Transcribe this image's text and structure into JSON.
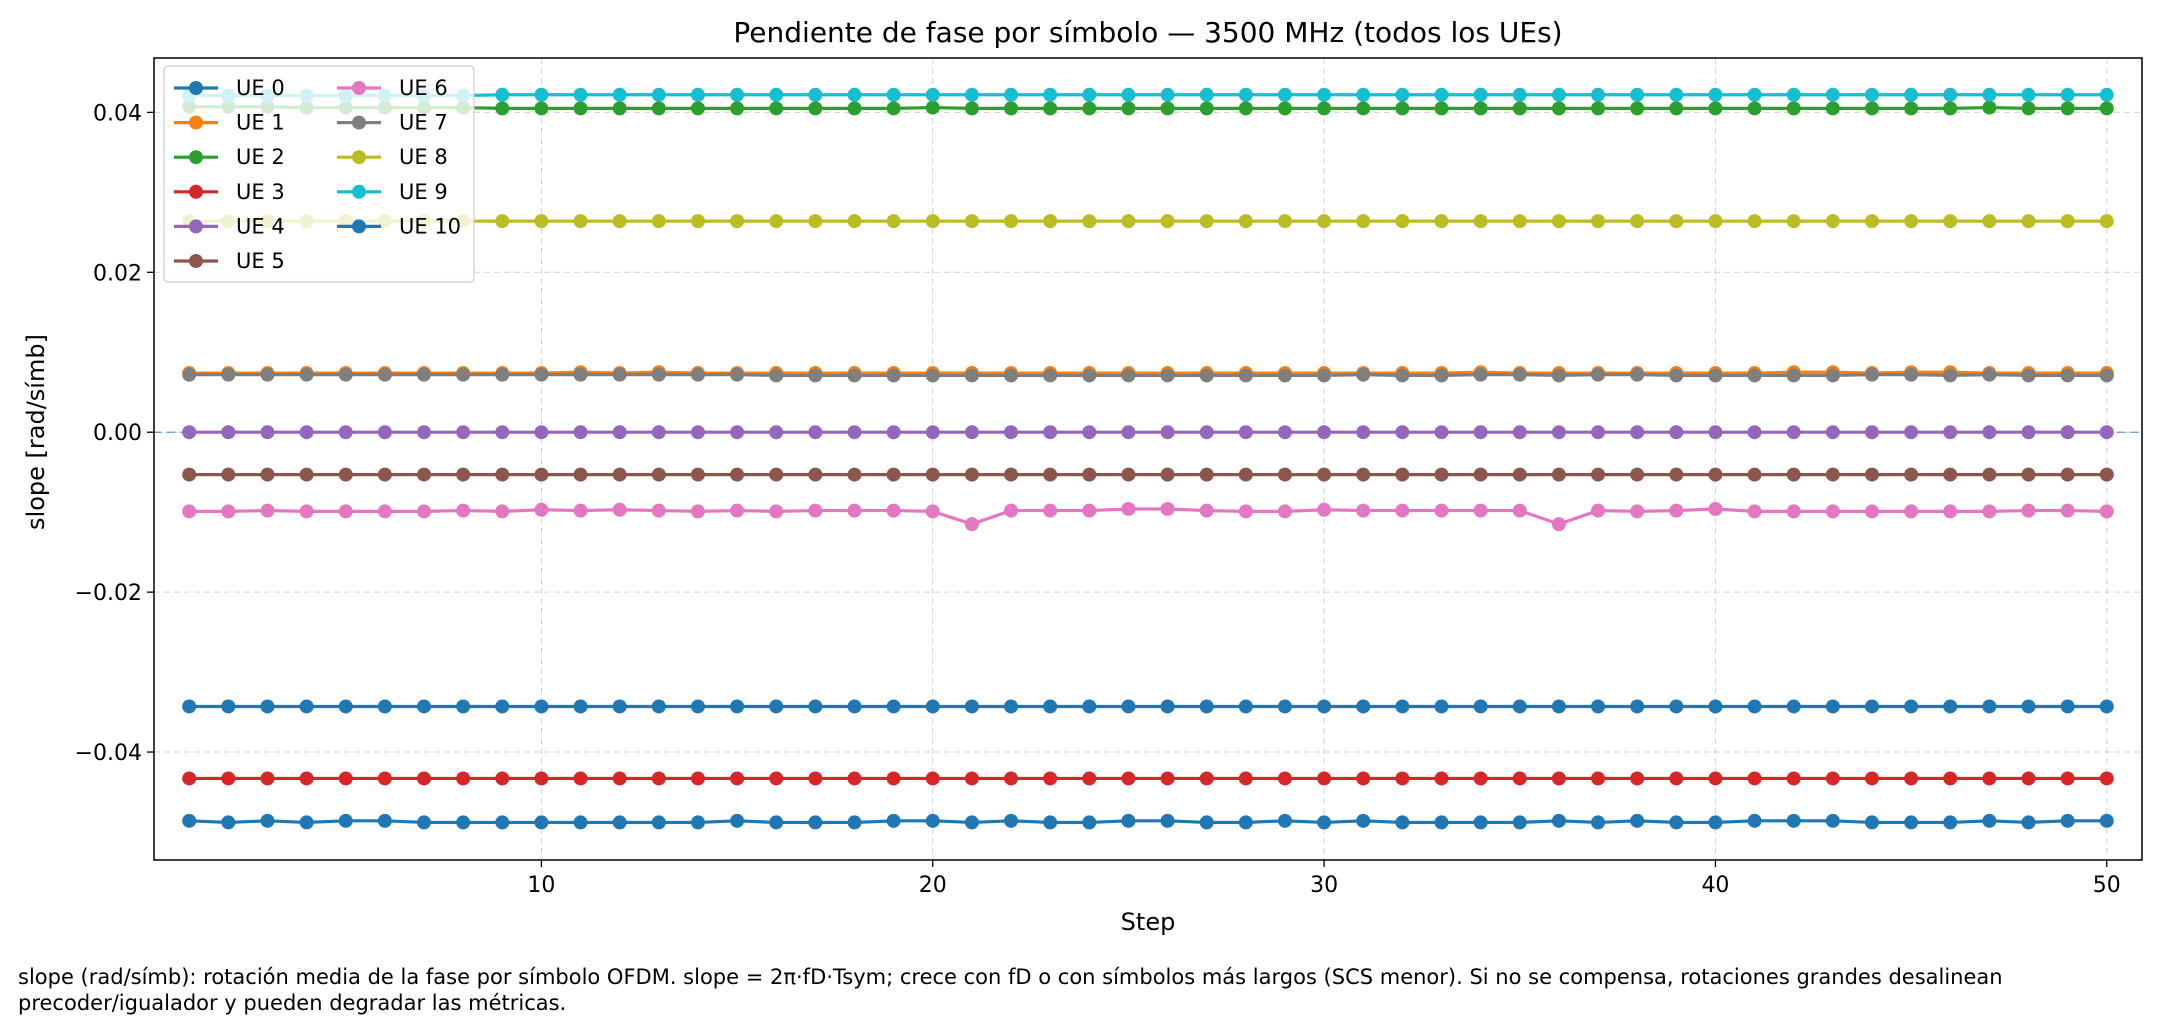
{
  "chart_data": {
    "type": "line",
    "title": "Pendiente de fase por símbolo — 3500 MHz (todos los UEs)",
    "xlabel": "Step",
    "ylabel": "slope [rad/símb]",
    "xlim": [
      0.1,
      50.9
    ],
    "ylim": [
      -0.0535,
      0.0468
    ],
    "xticks": [
      10,
      20,
      30,
      40,
      50
    ],
    "yticks": [
      -0.04,
      -0.02,
      0.0,
      0.02,
      0.04
    ],
    "ytick_labels": [
      "−0.04",
      "−0.02",
      "0.00",
      "0.02",
      "0.04"
    ],
    "grid": true,
    "legend_position": "upper left",
    "legend_columns": 2,
    "reference_line": {
      "y": 0.0,
      "style": "dashed",
      "color": "#1f77b4"
    },
    "x": [
      1,
      2,
      3,
      4,
      5,
      6,
      7,
      8,
      9,
      10,
      11,
      12,
      13,
      14,
      15,
      16,
      17,
      18,
      19,
      20,
      21,
      22,
      23,
      24,
      25,
      26,
      27,
      28,
      29,
      30,
      31,
      32,
      33,
      34,
      35,
      36,
      37,
      38,
      39,
      40,
      41,
      42,
      43,
      44,
      45,
      46,
      47,
      48,
      49,
      50
    ],
    "series": [
      {
        "name": "UE 0",
        "color": "#1f77b4",
        "values": [
          -0.0343,
          -0.0343,
          -0.0343,
          -0.0343,
          -0.0343,
          -0.0343,
          -0.0343,
          -0.0343,
          -0.0343,
          -0.0343,
          -0.0343,
          -0.0343,
          -0.0343,
          -0.0343,
          -0.0343,
          -0.0343,
          -0.0343,
          -0.0343,
          -0.0343,
          -0.0343,
          -0.0343,
          -0.0343,
          -0.0343,
          -0.0343,
          -0.0343,
          -0.0343,
          -0.0343,
          -0.0343,
          -0.0343,
          -0.0343,
          -0.0343,
          -0.0343,
          -0.0343,
          -0.0343,
          -0.0343,
          -0.0343,
          -0.0343,
          -0.0343,
          -0.0343,
          -0.0343,
          -0.0343,
          -0.0343,
          -0.0343,
          -0.0343,
          -0.0343,
          -0.0343,
          -0.0343,
          -0.0343,
          -0.0343,
          -0.0343
        ]
      },
      {
        "name": "UE 1",
        "color": "#ff7f0e",
        "values": [
          0.0074,
          0.0074,
          0.0074,
          0.0074,
          0.0074,
          0.0074,
          0.0074,
          0.0074,
          0.0074,
          0.0074,
          0.0075,
          0.0074,
          0.0075,
          0.0074,
          0.0074,
          0.0074,
          0.0074,
          0.0074,
          0.0074,
          0.0074,
          0.0074,
          0.0074,
          0.0074,
          0.0074,
          0.0074,
          0.0074,
          0.0074,
          0.0074,
          0.0074,
          0.0074,
          0.0074,
          0.0074,
          0.0074,
          0.0075,
          0.0074,
          0.0074,
          0.0074,
          0.0074,
          0.0074,
          0.0074,
          0.0074,
          0.0075,
          0.0075,
          0.0074,
          0.0075,
          0.0075,
          0.0074,
          0.0074,
          0.0074,
          0.0074
        ]
      },
      {
        "name": "UE 2",
        "color": "#2ca02c",
        "values": [
          0.0407,
          0.0407,
          0.0407,
          0.0406,
          0.0406,
          0.0406,
          0.0406,
          0.0406,
          0.0405,
          0.0405,
          0.0405,
          0.0405,
          0.0405,
          0.0405,
          0.0405,
          0.0405,
          0.0405,
          0.0405,
          0.0405,
          0.0406,
          0.0405,
          0.0405,
          0.0405,
          0.0405,
          0.0405,
          0.0405,
          0.0405,
          0.0405,
          0.0405,
          0.0405,
          0.0405,
          0.0405,
          0.0405,
          0.0405,
          0.0405,
          0.0405,
          0.0405,
          0.0405,
          0.0405,
          0.0405,
          0.0405,
          0.0405,
          0.0405,
          0.0405,
          0.0405,
          0.0405,
          0.0406,
          0.0405,
          0.0405,
          0.0405
        ]
      },
      {
        "name": "UE 3",
        "color": "#d62728",
        "values": [
          -0.0433,
          -0.0433,
          -0.0433,
          -0.0433,
          -0.0433,
          -0.0433,
          -0.0433,
          -0.0433,
          -0.0433,
          -0.0433,
          -0.0433,
          -0.0433,
          -0.0433,
          -0.0433,
          -0.0433,
          -0.0433,
          -0.0433,
          -0.0433,
          -0.0433,
          -0.0433,
          -0.0433,
          -0.0433,
          -0.0433,
          -0.0433,
          -0.0433,
          -0.0433,
          -0.0433,
          -0.0433,
          -0.0433,
          -0.0433,
          -0.0433,
          -0.0433,
          -0.0433,
          -0.0433,
          -0.0433,
          -0.0433,
          -0.0433,
          -0.0433,
          -0.0433,
          -0.0433,
          -0.0433,
          -0.0433,
          -0.0433,
          -0.0433,
          -0.0433,
          -0.0433,
          -0.0433,
          -0.0433,
          -0.0433,
          -0.0433
        ]
      },
      {
        "name": "UE 4",
        "color": "#9467bd",
        "values": [
          0.0,
          0.0,
          0.0,
          0.0,
          0.0,
          0.0,
          0.0,
          0.0,
          0.0,
          0.0,
          0.0,
          0.0,
          0.0,
          0.0,
          0.0,
          0.0,
          0.0,
          0.0,
          0.0,
          0.0,
          0.0,
          0.0,
          0.0,
          0.0,
          0.0,
          0.0,
          0.0,
          0.0,
          0.0,
          0.0,
          0.0,
          0.0,
          0.0,
          0.0,
          0.0,
          0.0,
          0.0,
          0.0,
          0.0,
          0.0,
          0.0,
          0.0,
          0.0,
          0.0,
          0.0,
          0.0,
          0.0,
          0.0,
          0.0,
          0.0
        ]
      },
      {
        "name": "UE 5",
        "color": "#8c564b",
        "values": [
          -0.0053,
          -0.0053,
          -0.0053,
          -0.0053,
          -0.0053,
          -0.0053,
          -0.0053,
          -0.0053,
          -0.0053,
          -0.0053,
          -0.0053,
          -0.0053,
          -0.0053,
          -0.0053,
          -0.0053,
          -0.0053,
          -0.0053,
          -0.0053,
          -0.0053,
          -0.0053,
          -0.0053,
          -0.0053,
          -0.0053,
          -0.0053,
          -0.0053,
          -0.0053,
          -0.0053,
          -0.0053,
          -0.0053,
          -0.0053,
          -0.0053,
          -0.0053,
          -0.0053,
          -0.0053,
          -0.0053,
          -0.0053,
          -0.0053,
          -0.0053,
          -0.0053,
          -0.0053,
          -0.0053,
          -0.0053,
          -0.0053,
          -0.0053,
          -0.0053,
          -0.0053,
          -0.0053,
          -0.0053,
          -0.0053,
          -0.0053
        ]
      },
      {
        "name": "UE 6",
        "color": "#e377c2",
        "values": [
          -0.0099,
          -0.0099,
          -0.0098,
          -0.0099,
          -0.0099,
          -0.0099,
          -0.0099,
          -0.0098,
          -0.0099,
          -0.0097,
          -0.0098,
          -0.0097,
          -0.0098,
          -0.0099,
          -0.0098,
          -0.0099,
          -0.0098,
          -0.0098,
          -0.0098,
          -0.0099,
          -0.0115,
          -0.0098,
          -0.0098,
          -0.0098,
          -0.0096,
          -0.0096,
          -0.0098,
          -0.0099,
          -0.0099,
          -0.0097,
          -0.0098,
          -0.0098,
          -0.0098,
          -0.0098,
          -0.0098,
          -0.0115,
          -0.0098,
          -0.0099,
          -0.0098,
          -0.0096,
          -0.0099,
          -0.0099,
          -0.0099,
          -0.0099,
          -0.0099,
          -0.0099,
          -0.0099,
          -0.0098,
          -0.0098,
          -0.0099
        ]
      },
      {
        "name": "UE 7",
        "color": "#7f7f7f",
        "values": [
          0.0072,
          0.0072,
          0.0072,
          0.0072,
          0.0072,
          0.0072,
          0.0072,
          0.0072,
          0.0072,
          0.0072,
          0.0072,
          0.0072,
          0.0072,
          0.0072,
          0.0072,
          0.0071,
          0.0071,
          0.0071,
          0.0071,
          0.0071,
          0.0071,
          0.0071,
          0.0071,
          0.0071,
          0.0071,
          0.0071,
          0.0071,
          0.0071,
          0.0071,
          0.0071,
          0.0072,
          0.0071,
          0.0071,
          0.0072,
          0.0072,
          0.0071,
          0.0072,
          0.0072,
          0.0071,
          0.0071,
          0.0071,
          0.0071,
          0.0071,
          0.0072,
          0.0072,
          0.0071,
          0.0072,
          0.0071,
          0.0071,
          0.0071
        ]
      },
      {
        "name": "UE 8",
        "color": "#bcbd22",
        "values": [
          0.0264,
          0.0264,
          0.0264,
          0.0264,
          0.0264,
          0.0264,
          0.0264,
          0.0264,
          0.0264,
          0.0264,
          0.0264,
          0.0264,
          0.0264,
          0.0264,
          0.0264,
          0.0264,
          0.0264,
          0.0264,
          0.0264,
          0.0264,
          0.0264,
          0.0264,
          0.0264,
          0.0264,
          0.0264,
          0.0264,
          0.0264,
          0.0264,
          0.0264,
          0.0264,
          0.0264,
          0.0264,
          0.0264,
          0.0264,
          0.0264,
          0.0264,
          0.0264,
          0.0264,
          0.0264,
          0.0264,
          0.0264,
          0.0264,
          0.0264,
          0.0264,
          0.0264,
          0.0264,
          0.0264,
          0.0264,
          0.0264,
          0.0264
        ]
      },
      {
        "name": "UE 9",
        "color": "#17becf",
        "values": [
          0.0421,
          0.0421,
          0.0421,
          0.0421,
          0.0421,
          0.0421,
          0.0421,
          0.0421,
          0.0422,
          0.0422,
          0.0422,
          0.0422,
          0.0422,
          0.0422,
          0.0422,
          0.0422,
          0.0422,
          0.0422,
          0.0422,
          0.0422,
          0.0422,
          0.0422,
          0.0422,
          0.0422,
          0.0422,
          0.0422,
          0.0422,
          0.0422,
          0.0422,
          0.0422,
          0.0422,
          0.0422,
          0.0422,
          0.0422,
          0.0422,
          0.0422,
          0.0422,
          0.0422,
          0.0422,
          0.0422,
          0.0422,
          0.0422,
          0.0422,
          0.0422,
          0.0422,
          0.0422,
          0.0422,
          0.0422,
          0.0422,
          0.0422
        ]
      },
      {
        "name": "UE 10",
        "color": "#1f77b4",
        "values": [
          -0.0486,
          -0.0488,
          -0.0486,
          -0.0488,
          -0.0486,
          -0.0486,
          -0.0488,
          -0.0488,
          -0.0488,
          -0.0488,
          -0.0488,
          -0.0488,
          -0.0488,
          -0.0488,
          -0.0486,
          -0.0488,
          -0.0488,
          -0.0488,
          -0.0486,
          -0.0486,
          -0.0488,
          -0.0486,
          -0.0488,
          -0.0488,
          -0.0486,
          -0.0486,
          -0.0488,
          -0.0488,
          -0.0486,
          -0.0488,
          -0.0486,
          -0.0488,
          -0.0488,
          -0.0488,
          -0.0488,
          -0.0486,
          -0.0488,
          -0.0486,
          -0.0488,
          -0.0488,
          -0.0486,
          -0.0486,
          -0.0486,
          -0.0488,
          -0.0488,
          -0.0488,
          -0.0486,
          -0.0488,
          -0.0486,
          -0.0486
        ]
      }
    ]
  },
  "caption": {
    "line1": "slope (rad/símb): rotación media de la fase por símbolo OFDM. slope = 2π·fD·Tsym; crece con fD o con símbolos más largos (SCS menor). Si no se compensa, rotaciones grandes desalinean",
    "line2": "precoder/igualador y pueden degradar las métricas."
  }
}
